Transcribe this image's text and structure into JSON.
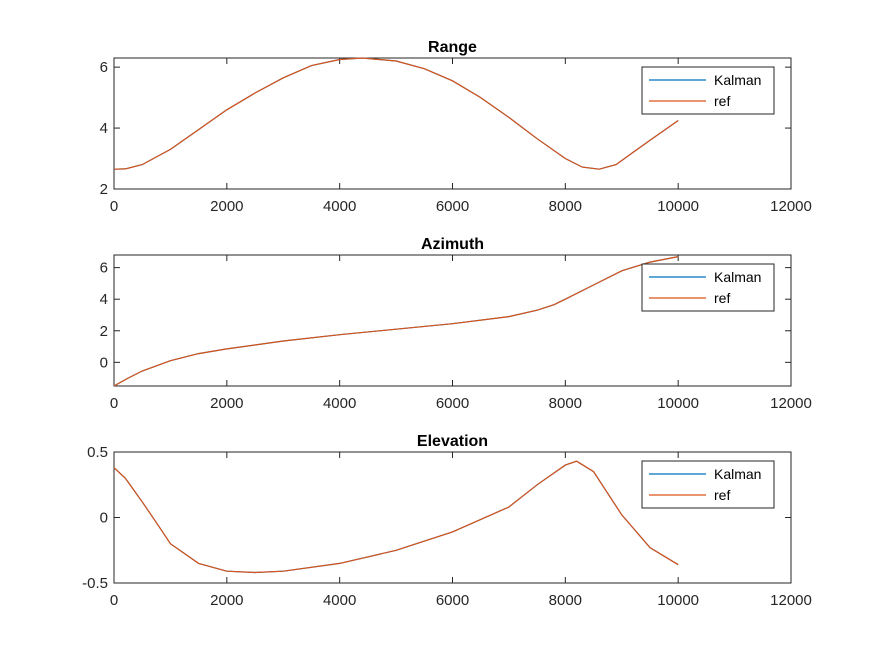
{
  "colors": {
    "kalman": "#0072BD",
    "ref": "#D95319",
    "axis": "#262626"
  },
  "chart_data": [
    {
      "type": "line",
      "title": "Range",
      "xlabel": "",
      "ylabel": "",
      "xlim": [
        0,
        12000
      ],
      "ylim": [
        2,
        6.3
      ],
      "xticks": [
        0,
        2000,
        4000,
        6000,
        8000,
        10000,
        12000
      ],
      "yticks": [
        2,
        4,
        6
      ],
      "grid": false,
      "legend": "top-right",
      "x": [
        0,
        200,
        500,
        1000,
        1500,
        2000,
        2500,
        3000,
        3500,
        4000,
        4400,
        5000,
        5500,
        6000,
        6500,
        7000,
        7500,
        8000,
        8300,
        8600,
        8900,
        9200,
        9500,
        10000
      ],
      "series": [
        {
          "name": "Kalman",
          "color": "kalman",
          "values": [
            2.65,
            2.66,
            2.8,
            3.3,
            3.95,
            4.6,
            5.15,
            5.65,
            6.05,
            6.25,
            6.3,
            6.2,
            5.95,
            5.55,
            5.0,
            4.35,
            3.65,
            3.0,
            2.72,
            2.65,
            2.8,
            3.2,
            3.6,
            4.25
          ]
        },
        {
          "name": "ref",
          "color": "ref",
          "values": [
            2.65,
            2.66,
            2.8,
            3.3,
            3.95,
            4.6,
            5.15,
            5.65,
            6.05,
            6.25,
            6.3,
            6.2,
            5.95,
            5.55,
            5.0,
            4.35,
            3.65,
            3.0,
            2.72,
            2.65,
            2.8,
            3.2,
            3.6,
            4.25
          ]
        }
      ]
    },
    {
      "type": "line",
      "title": "Azimuth",
      "xlabel": "",
      "ylabel": "",
      "xlim": [
        0,
        12000
      ],
      "ylim": [
        -1.5,
        6.8
      ],
      "xticks": [
        0,
        2000,
        4000,
        6000,
        8000,
        10000,
        12000
      ],
      "yticks": [
        0,
        2,
        4,
        6
      ],
      "grid": false,
      "legend": "top-right",
      "x": [
        0,
        250,
        500,
        1000,
        1500,
        2000,
        3000,
        4000,
        5000,
        6000,
        7000,
        7500,
        7800,
        8000,
        8500,
        9000,
        9500,
        10000
      ],
      "series": [
        {
          "name": "Kalman",
          "color": "kalman",
          "values": [
            -1.5,
            -1.0,
            -0.55,
            0.1,
            0.55,
            0.85,
            1.35,
            1.75,
            2.1,
            2.45,
            2.9,
            3.3,
            3.65,
            4.0,
            4.9,
            5.8,
            6.35,
            6.7
          ]
        },
        {
          "name": "ref",
          "color": "ref",
          "values": [
            -1.5,
            -1.0,
            -0.55,
            0.1,
            0.55,
            0.85,
            1.35,
            1.75,
            2.1,
            2.45,
            2.9,
            3.3,
            3.65,
            4.0,
            4.9,
            5.8,
            6.35,
            6.7
          ]
        }
      ]
    },
    {
      "type": "line",
      "title": "Elevation",
      "xlabel": "",
      "ylabel": "",
      "xlim": [
        0,
        12000
      ],
      "ylim": [
        -0.5,
        0.5
      ],
      "xticks": [
        0,
        2000,
        4000,
        6000,
        8000,
        10000,
        12000
      ],
      "yticks": [
        -0.5,
        0,
        0.5
      ],
      "grid": false,
      "legend": "top-right",
      "x": [
        0,
        200,
        500,
        800,
        1000,
        1500,
        2000,
        2500,
        3000,
        4000,
        5000,
        6000,
        7000,
        7500,
        8000,
        8200,
        8500,
        9000,
        9500,
        10000
      ],
      "series": [
        {
          "name": "Kalman",
          "color": "kalman",
          "values": [
            0.38,
            0.3,
            0.12,
            -0.07,
            -0.2,
            -0.35,
            -0.41,
            -0.42,
            -0.41,
            -0.35,
            -0.25,
            -0.11,
            0.08,
            0.25,
            0.4,
            0.43,
            0.35,
            0.02,
            -0.23,
            -0.36
          ]
        },
        {
          "name": "ref",
          "color": "ref",
          "values": [
            0.38,
            0.3,
            0.12,
            -0.07,
            -0.2,
            -0.35,
            -0.41,
            -0.42,
            -0.41,
            -0.35,
            -0.25,
            -0.11,
            0.08,
            0.25,
            0.4,
            0.43,
            0.35,
            0.02,
            -0.23,
            -0.36
          ]
        }
      ]
    }
  ]
}
